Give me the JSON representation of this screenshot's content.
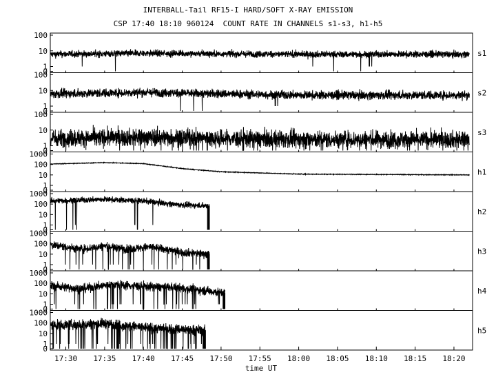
{
  "chart_data": {
    "type": "line",
    "title": "INTERBALL-Tail RF15-I HARD/SOFT X-RAY EMISSION",
    "subtitle": "CSP 17:40 18:10 960124  COUNT RATE IN CHANNELS s1-s3, h1-h5",
    "xlabel": "time UT",
    "x_unit": "minutes since 17:00 UT",
    "xlim": [
      28.0,
      82.4
    ],
    "x_ticks": [
      {
        "t": 30,
        "label": "17:30"
      },
      {
        "t": 35,
        "label": "17:35"
      },
      {
        "t": 40,
        "label": "17:40"
      },
      {
        "t": 45,
        "label": "17:45"
      },
      {
        "t": 50,
        "label": "17:50"
      },
      {
        "t": 55,
        "label": "17:55"
      },
      {
        "t": 60,
        "label": "18:00"
      },
      {
        "t": 65,
        "label": "18:05"
      },
      {
        "t": 70,
        "label": "18:10"
      },
      {
        "t": 75,
        "label": "18:15"
      },
      {
        "t": 80,
        "label": "18:20"
      }
    ],
    "grid": false,
    "panels": [
      {
        "name": "s1",
        "y_ticks": [
          "100",
          "10",
          "1",
          "0"
        ],
        "dynamic": [
          [
            "17:28",
            6
          ],
          [
            "17:40",
            7
          ],
          [
            "18:00",
            6
          ],
          [
            "18:22",
            6
          ]
        ],
        "end_time": "18:22",
        "noise": 0.35,
        "dropouts": 0.002
      },
      {
        "name": "s2",
        "y_ticks": [
          "100",
          "10",
          "1",
          "0"
        ],
        "dynamic": [
          [
            "17:28",
            6
          ],
          [
            "17:40",
            7.5
          ],
          [
            "18:00",
            5
          ],
          [
            "18:22",
            5
          ]
        ],
        "end_time": "18:22",
        "noise": 0.45,
        "dropouts": 0.004
      },
      {
        "name": "s3",
        "y_ticks": [
          "100",
          "10",
          "1",
          "0"
        ],
        "dynamic": [
          [
            "17:28",
            3
          ],
          [
            "17:40",
            3.5
          ],
          [
            "18:00",
            2.5
          ],
          [
            "18:22",
            2.5
          ]
        ],
        "end_time": "18:22",
        "noise": 0.9,
        "dropouts": 0.02
      },
      {
        "name": "h1",
        "y_ticks": [
          "1000",
          "100",
          "10",
          "1",
          "0"
        ],
        "dynamic": [
          [
            "17:28",
            110
          ],
          [
            "17:35",
            150
          ],
          [
            "17:40",
            120
          ],
          [
            "17:45",
            40
          ],
          [
            "17:50",
            20
          ],
          [
            "18:00",
            12
          ],
          [
            "18:22",
            10
          ]
        ],
        "end_time": "18:22",
        "noise": 0.05,
        "dropouts": 0
      },
      {
        "name": "h2",
        "y_ticks": [
          "1000",
          "100",
          "10",
          "1",
          "0"
        ],
        "dynamic": [
          [
            "17:28",
            200
          ],
          [
            "17:35",
            280
          ],
          [
            "17:40",
            200
          ],
          [
            "17:45",
            80
          ],
          [
            "17:48.5",
            70
          ]
        ],
        "end_time": "17:48.5",
        "noise": 0.45,
        "dropouts": 0.01
      },
      {
        "name": "h3",
        "y_ticks": [
          "1000",
          "100",
          "10",
          "1",
          "0"
        ],
        "dynamic": [
          [
            "17:28",
            80
          ],
          [
            "17:32",
            30
          ],
          [
            "17:35",
            60
          ],
          [
            "17:38",
            30
          ],
          [
            "17:41",
            50
          ],
          [
            "17:45",
            15
          ],
          [
            "17:48.5",
            10
          ]
        ],
        "end_time": "17:48.5",
        "noise": 0.65,
        "dropouts": 0.03
      },
      {
        "name": "h4",
        "y_ticks": [
          "1000",
          "100",
          "10",
          "1",
          "0"
        ],
        "dynamic": [
          [
            "17:28",
            60
          ],
          [
            "17:32",
            30
          ],
          [
            "17:36",
            80
          ],
          [
            "17:40",
            50
          ],
          [
            "17:44",
            40
          ],
          [
            "17:48",
            20
          ],
          [
            "17:50.5",
            12
          ]
        ],
        "end_time": "17:50.5",
        "noise": 0.7,
        "dropouts": 0.03
      },
      {
        "name": "h5",
        "y_ticks": [
          "1000",
          "100",
          "10",
          "1",
          "0"
        ],
        "dynamic": [
          [
            "17:28",
            60
          ],
          [
            "17:32",
            70
          ],
          [
            "17:35",
            90
          ],
          [
            "17:38",
            50
          ],
          [
            "17:42",
            30
          ],
          [
            "17:48",
            20
          ]
        ],
        "end_time": "17:48",
        "noise": 0.8,
        "dropouts": 0.06
      }
    ]
  }
}
